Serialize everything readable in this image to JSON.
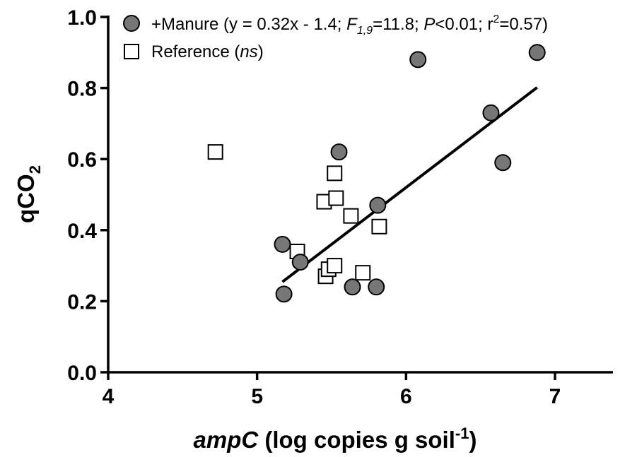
{
  "chart_data": {
    "type": "scatter",
    "title": "",
    "xlabel": {
      "italic": "ampC",
      "text": " (log copies g soil",
      "sup": "-1",
      "close": ")"
    },
    "ylabel": {
      "main": "qCO",
      "sub": "2"
    },
    "xlim": [
      4,
      7.4
    ],
    "ylim": [
      0,
      1.0
    ],
    "xticks": [
      4,
      5,
      6,
      7
    ],
    "xtick_labels": [
      "4",
      "5",
      "6",
      "7"
    ],
    "yticks": [
      0,
      0.2,
      0.4,
      0.6,
      0.8,
      1.0
    ],
    "ytick_labels": [
      "0.0",
      "0.2",
      "0.4",
      "0.6",
      "0.8",
      "1.0"
    ],
    "grid": false,
    "legend_position": "top",
    "colors": {
      "manure": "#777777",
      "reference": "#ffffff",
      "outline": "#000000"
    },
    "series": [
      {
        "name": "+Manure",
        "marker": "circle",
        "legend": {
          "prefix": "+Manure (y = 0.32x - 1.4; ",
          "f": "F",
          "fsub": "1,9",
          "fval": "=11.8; ",
          "p": "P",
          "pval": "<0.01; r",
          "r2sup": "2",
          "r2val": "=0.57)"
        },
        "points": [
          {
            "x": 5.17,
            "y": 0.36
          },
          {
            "x": 5.18,
            "y": 0.22
          },
          {
            "x": 5.29,
            "y": 0.31
          },
          {
            "x": 5.55,
            "y": 0.62
          },
          {
            "x": 5.64,
            "y": 0.24
          },
          {
            "x": 5.8,
            "y": 0.24
          },
          {
            "x": 5.81,
            "y": 0.47
          },
          {
            "x": 6.08,
            "y": 0.88
          },
          {
            "x": 6.57,
            "y": 0.73
          },
          {
            "x": 6.65,
            "y": 0.59
          },
          {
            "x": 6.88,
            "y": 0.9
          }
        ],
        "fit": {
          "x_start": 5.17,
          "x_end": 6.88
        }
      },
      {
        "name": "Reference",
        "marker": "square",
        "legend": {
          "prefix": "Reference (",
          "italic": "ns",
          "suffix": ")"
        },
        "points": [
          {
            "x": 4.72,
            "y": 0.62
          },
          {
            "x": 5.27,
            "y": 0.34
          },
          {
            "x": 5.45,
            "y": 0.48
          },
          {
            "x": 5.46,
            "y": 0.27
          },
          {
            "x": 5.48,
            "y": 0.29
          },
          {
            "x": 5.52,
            "y": 0.3
          },
          {
            "x": 5.52,
            "y": 0.56
          },
          {
            "x": 5.53,
            "y": 0.49
          },
          {
            "x": 5.63,
            "y": 0.44
          },
          {
            "x": 5.71,
            "y": 0.28
          },
          {
            "x": 5.82,
            "y": 0.41
          }
        ]
      }
    ],
    "fit_line": {
      "slope": 0.32,
      "intercept": -1.4
    }
  }
}
